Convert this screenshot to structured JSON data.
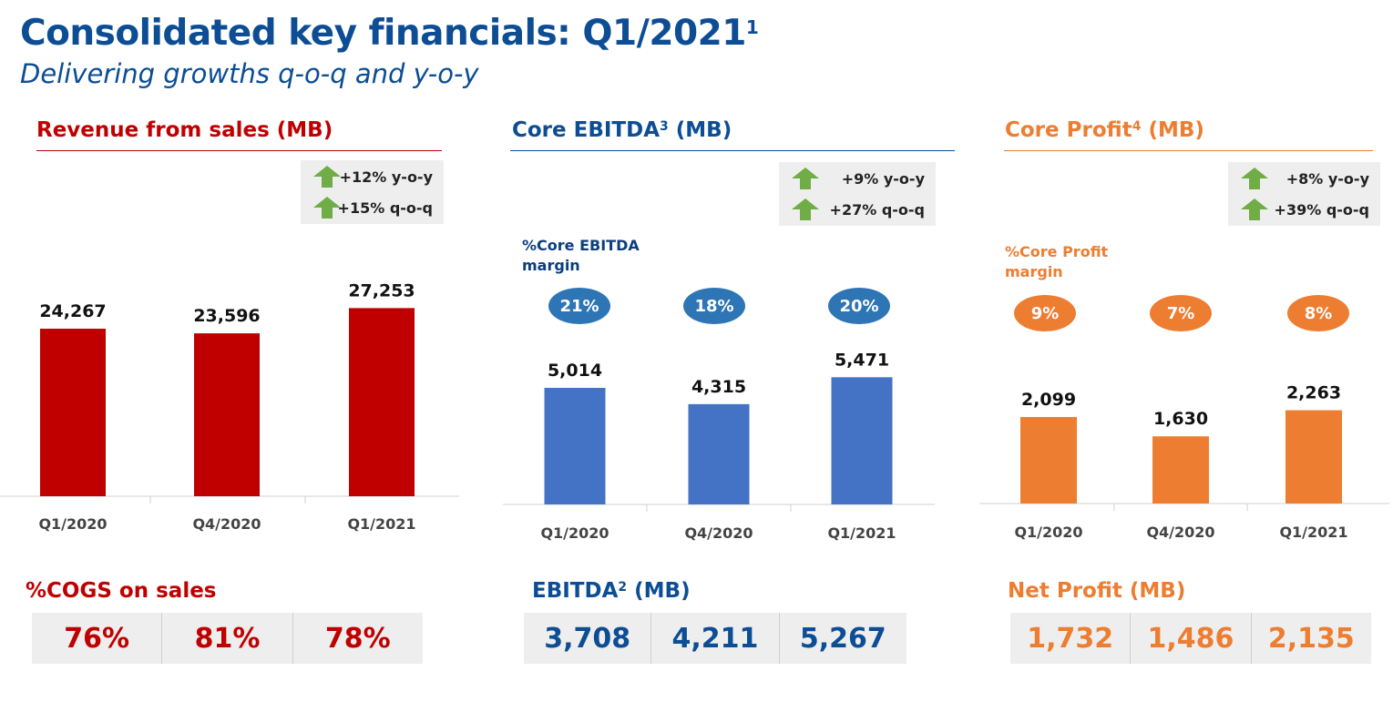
{
  "header": {
    "title": "Consolidated key financials: Q1/2021",
    "title_sup": "1",
    "subtitle": "Delivering growths q-o-q and y-o-y"
  },
  "colors": {
    "title_blue": "#0c4d94",
    "revenue_red": "#c00000",
    "ebitda_blue": "#4472c4",
    "profit_orange": "#ed7d31",
    "growth_arrow_green": "#70ad47"
  },
  "chart_data": [
    {
      "type": "bar",
      "title": "Revenue from sales (MB)",
      "categories": [
        "Q1/2020",
        "Q4/2020",
        "Q1/2021"
      ],
      "values": [
        24267,
        23596,
        27253
      ],
      "value_labels": [
        "24,267",
        "23,596",
        "27,253"
      ],
      "ylim": [
        0,
        30000
      ],
      "grid": false,
      "growth": [
        {
          "icon": "up-arrow-icon",
          "text": "+12% y-o-y"
        },
        {
          "icon": "up-arrow-icon",
          "text": "+15% q-o-q"
        }
      ]
    },
    {
      "type": "bar",
      "title": "Core EBITDA",
      "title_sup": "3",
      "title_suffix": "(MB)",
      "categories": [
        "Q1/2020",
        "Q4/2020",
        "Q1/2021"
      ],
      "values": [
        5014,
        4315,
        5471
      ],
      "value_labels": [
        "5,014",
        "4,315",
        "5,471"
      ],
      "ylim": [
        0,
        7500
      ],
      "grid": false,
      "growth": [
        {
          "icon": "up-arrow-icon",
          "text": "+9% y-o-y"
        },
        {
          "icon": "up-arrow-icon",
          "text": "+27% q-o-q"
        }
      ],
      "margin_label": [
        "%Core EBITDA",
        "margin"
      ],
      "margins": [
        "21%",
        "18%",
        "20%"
      ]
    },
    {
      "type": "bar",
      "title": "Core Profit",
      "title_sup": "4",
      "title_suffix": "(MB)",
      "categories": [
        "Q1/2020",
        "Q4/2020",
        "Q1/2021"
      ],
      "values": [
        2099,
        1630,
        2263
      ],
      "value_labels": [
        "2,099",
        "1,630",
        "2,263"
      ],
      "ylim": [
        0,
        4500
      ],
      "grid": false,
      "growth": [
        {
          "icon": "up-arrow-icon",
          "text": "+8% y-o-y"
        },
        {
          "icon": "up-arrow-icon",
          "text": "+39% q-o-q"
        }
      ],
      "margin_label": [
        "%Core Profit",
        "margin"
      ],
      "margins": [
        "9%",
        "7%",
        "8%"
      ]
    }
  ],
  "bottom": [
    {
      "title": "%COGS on sales",
      "values": [
        "76%",
        "81%",
        "78%"
      ]
    },
    {
      "title": "EBITDA",
      "title_sup": "2",
      "title_suffix": "(MB)",
      "values": [
        "3,708",
        "4,211",
        "5,267"
      ]
    },
    {
      "title": "Net Profit (MB)",
      "values": [
        "1,732",
        "1,486",
        "2,135"
      ]
    }
  ]
}
